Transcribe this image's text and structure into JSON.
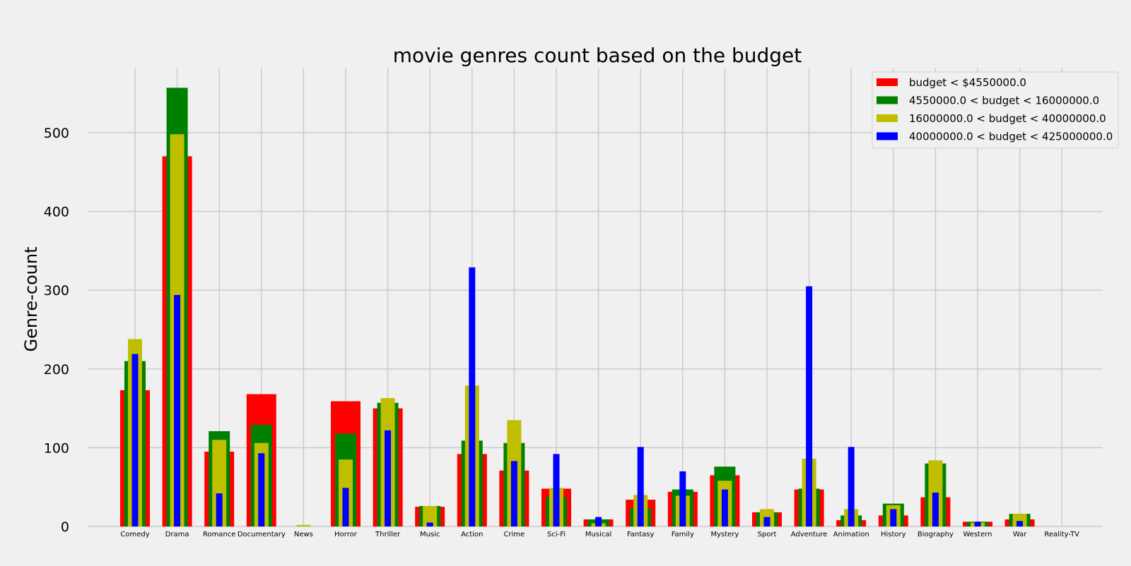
{
  "chart_data": {
    "type": "bar",
    "title": "movie genres count based on the budget",
    "xlabel": "",
    "ylabel": "Genre-count",
    "ylim": [
      0,
      580
    ],
    "yticks": [
      "0",
      "100",
      "200",
      "300",
      "400",
      "500"
    ],
    "grid": true,
    "legend_position": "top-right",
    "categories": [
      "Comedy",
      "Drama",
      "Romance",
      "Documentary",
      "News",
      "Horror",
      "Thriller",
      "Music",
      "Action",
      "Crime",
      "Sci-Fi",
      "Musical",
      "Fantasy",
      "Family",
      "Mystery",
      "Sport",
      "Adventure",
      "Animation",
      "History",
      "Biography",
      "Western",
      "War",
      "Reality-TV"
    ],
    "series": [
      {
        "name": "budget < $4550000.0",
        "color": "#ff0000",
        "values": [
          173,
          470,
          95,
          168,
          0,
          159,
          150,
          25,
          92,
          71,
          48,
          9,
          34,
          44,
          65,
          18,
          47,
          8,
          14,
          37,
          6,
          9,
          0
        ]
      },
      {
        "name": "4550000.0 < budget < 16000000.0",
        "color": "#008000",
        "values": [
          210,
          557,
          121,
          129,
          0,
          118,
          157,
          26,
          109,
          106,
          37,
          9,
          23,
          47,
          76,
          18,
          48,
          14,
          29,
          80,
          6,
          16,
          0
        ]
      },
      {
        "name": "16000000.0 < budget < 40000000.0",
        "color": "#bfbf00",
        "values": [
          238,
          498,
          110,
          106,
          2,
          85,
          163,
          26,
          179,
          135,
          49,
          4,
          40,
          39,
          58,
          22,
          86,
          22,
          27,
          84,
          5,
          16,
          0
        ]
      },
      {
        "name": "40000000.0 < budget < 425000000.0",
        "color": "#0000ff",
        "values": [
          219,
          294,
          42,
          93,
          0,
          49,
          122,
          5,
          329,
          83,
          92,
          12,
          101,
          70,
          47,
          12,
          305,
          101,
          22,
          43,
          6,
          7,
          0
        ]
      }
    ]
  }
}
